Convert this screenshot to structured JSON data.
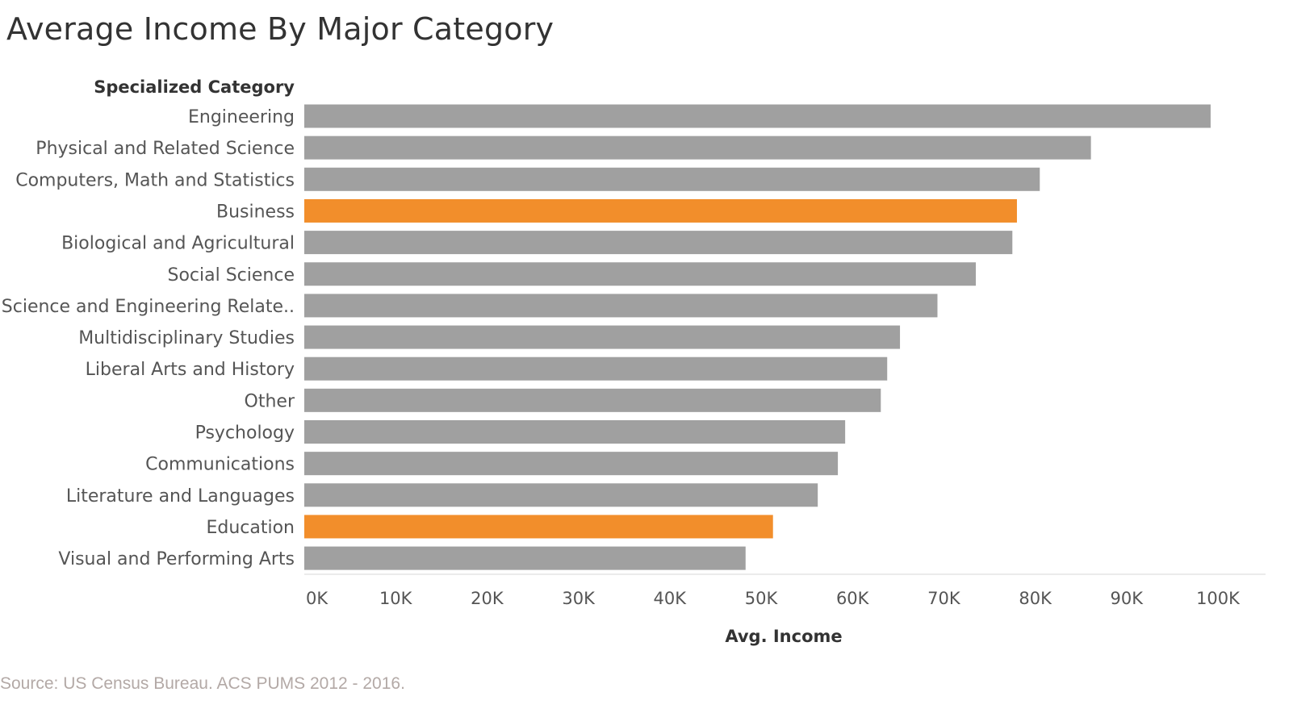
{
  "chart_data": {
    "type": "bar",
    "orientation": "horizontal",
    "title": "Average Income By Major Category",
    "row_header": "Specialized Category",
    "xlabel": "Avg. Income",
    "xlim": [
      0,
      100000
    ],
    "x_ticks": [
      {
        "value": 0,
        "label": "0K"
      },
      {
        "value": 10000,
        "label": "10K"
      },
      {
        "value": 20000,
        "label": "20K"
      },
      {
        "value": 30000,
        "label": "30K"
      },
      {
        "value": 40000,
        "label": "40K"
      },
      {
        "value": 50000,
        "label": "50K"
      },
      {
        "value": 60000,
        "label": "60K"
      },
      {
        "value": 70000,
        "label": "70K"
      },
      {
        "value": 80000,
        "label": "80K"
      },
      {
        "value": 90000,
        "label": "90K"
      },
      {
        "value": 100000,
        "label": "100K"
      }
    ],
    "categories": [
      "Engineering",
      "Physical and Related Science",
      "Computers, Math and Statistics",
      "Business",
      "Biological and Agricultural",
      "Social Science",
      "Science and Engineering Relate..",
      "Multidisciplinary Studies",
      "Liberal Arts and History",
      "Other",
      "Psychology",
      "Communications",
      "Literature and Languages",
      "Education",
      "Visual and Performing Arts"
    ],
    "values": [
      99200,
      86100,
      80500,
      78000,
      77500,
      73500,
      69300,
      65200,
      63800,
      63100,
      59200,
      58400,
      56200,
      51300,
      48300
    ],
    "highlighted": [
      "Business",
      "Education"
    ],
    "colors": {
      "default": "#a0a0a0",
      "highlight": "#f28e2b"
    },
    "grid": false,
    "legend": "none"
  },
  "source_note": "Source: US Census Bureau. ACS PUMS 2012 - 2016."
}
